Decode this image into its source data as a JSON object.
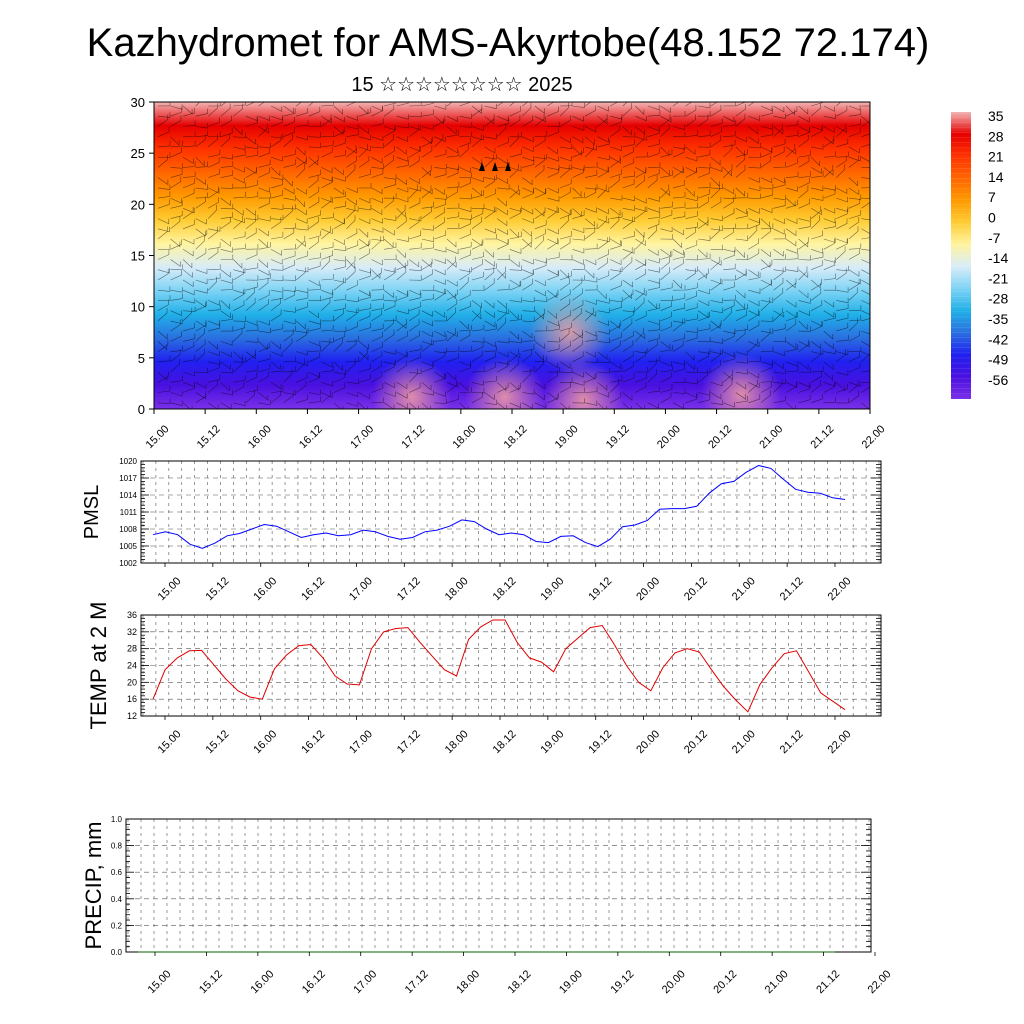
{
  "header": {
    "title": "Kazhydromet for AMS-Akyrtobe(48.152 72.174)",
    "subtitle": "15 ☆☆☆☆☆☆☆☆ 2025"
  },
  "time_labels": [
    "15.00",
    "15.12",
    "16.00",
    "16.12",
    "17.00",
    "17.12",
    "18.00",
    "18.12",
    "19.00",
    "19.12",
    "20.00",
    "20.12",
    "21.00",
    "21.12",
    "22.00"
  ],
  "chart_data": [
    {
      "id": "cross-section",
      "type": "heatmap",
      "ylim": [
        0,
        30
      ],
      "y_ticks": [
        0,
        5,
        10,
        15,
        20,
        25,
        30
      ],
      "colorbar_labels": [
        "35",
        "28",
        "21",
        "14",
        "7",
        "0",
        "-7",
        "-14",
        "-21",
        "-28",
        "-35",
        "-42",
        "-49",
        "-56"
      ],
      "color_stops": [
        "#f2b5b5",
        "#e60000",
        "#ff3300",
        "#ff6600",
        "#ff9900",
        "#ffcc33",
        "#fff4a0",
        "#d8ecf8",
        "#7dd3f5",
        "#20b0e8",
        "#2a6fe0",
        "#2020f0",
        "#4a10e0",
        "#7a30e8"
      ]
    },
    {
      "id": "pmsl",
      "type": "line",
      "ylabel": "PMSL",
      "ylim": [
        1002,
        1020
      ],
      "y_ticks": [
        1002,
        1005,
        1008,
        1011,
        1014,
        1017,
        1020
      ],
      "line_color": "#0000ff",
      "values": [
        1007.0,
        1007.5,
        1007.0,
        1005.3,
        1004.6,
        1005.5,
        1006.8,
        1007.2,
        1008.0,
        1008.8,
        1008.5,
        1007.5,
        1006.5,
        1007.0,
        1007.3,
        1006.8,
        1007.0,
        1007.8,
        1007.5,
        1006.7,
        1006.2,
        1006.5,
        1007.5,
        1007.8,
        1008.5,
        1009.6,
        1009.3,
        1008.0,
        1007.0,
        1007.3,
        1007.0,
        1005.8,
        1005.6,
        1006.7,
        1006.8,
        1005.6,
        1004.9,
        1006.2,
        1008.4,
        1008.7,
        1009.5,
        1011.5,
        1011.6,
        1011.6,
        1012.0,
        1014.3,
        1016.0,
        1016.4,
        1018.0,
        1019.2,
        1018.7,
        1016.8,
        1015.0,
        1014.5,
        1014.3,
        1013.5,
        1013.2
      ]
    },
    {
      "id": "temp",
      "type": "line",
      "ylabel": "TEMP at 2 M",
      "ylim": [
        12,
        36
      ],
      "y_ticks": [
        12,
        16,
        20,
        24,
        28,
        32,
        36
      ],
      "line_color": "#e00000",
      "values": [
        16.0,
        23.0,
        25.8,
        27.5,
        27.6,
        24.2,
        20.8,
        18.0,
        16.5,
        16.0,
        23.2,
        26.5,
        28.7,
        29.0,
        25.8,
        21.5,
        19.6,
        19.4,
        28.0,
        32.0,
        32.8,
        33.0,
        29.5,
        26.2,
        23.0,
        21.5,
        30.2,
        33.2,
        34.8,
        34.8,
        29.5,
        25.8,
        24.8,
        22.5,
        28.0,
        30.5,
        33.0,
        33.5,
        29.0,
        24.0,
        20.0,
        18.0,
        23.5,
        27.0,
        28.0,
        27.2,
        23.0,
        19.0,
        15.8,
        13.0,
        19.5,
        23.5,
        26.8,
        27.5,
        22.5,
        17.5,
        15.5,
        13.5
      ]
    },
    {
      "id": "precip",
      "type": "line",
      "ylabel": "PRECIP, mm",
      "ylim": [
        0.0,
        1.0
      ],
      "y_ticks": [
        0.0,
        0.2,
        0.4,
        0.6,
        0.8,
        1.0
      ],
      "y_tick_labels": [
        "0.0",
        "0.2",
        "0.4",
        "0.6",
        "0.8",
        "1.0"
      ],
      "line_color": "#006400",
      "values": [
        0,
        0,
        0,
        0,
        0,
        0,
        0,
        0,
        0,
        0,
        0,
        0,
        0,
        0,
        0,
        0,
        0,
        0,
        0,
        0,
        0,
        0,
        0,
        0,
        0,
        0,
        0,
        0,
        0,
        0,
        0,
        0,
        0,
        0,
        0,
        0,
        0,
        0,
        0,
        0,
        0,
        0,
        0,
        0,
        0,
        0,
        0,
        0,
        0,
        0,
        0,
        0,
        0,
        0,
        0,
        0,
        0
      ]
    }
  ]
}
